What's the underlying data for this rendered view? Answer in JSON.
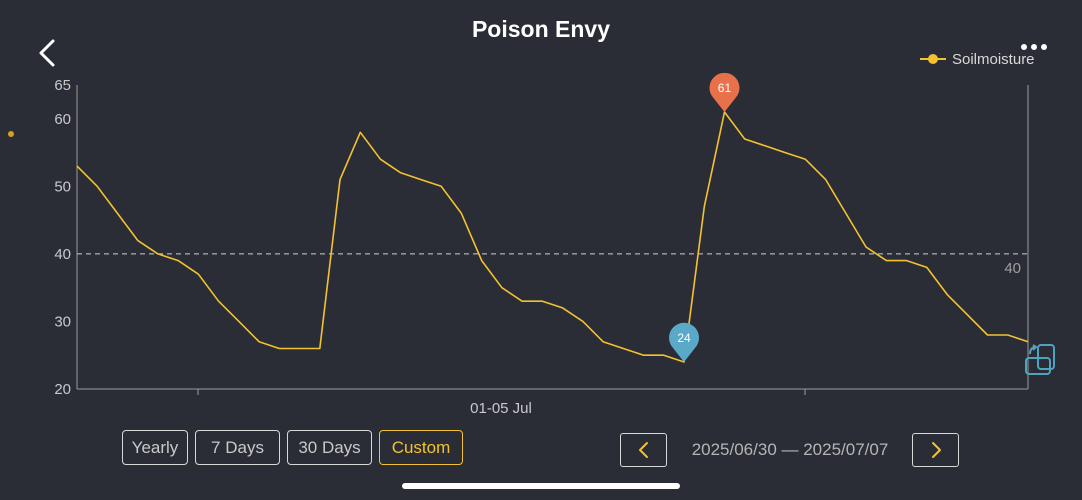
{
  "header": {
    "title": "Poison Envy"
  },
  "icons": {
    "back": "chevron-left-icon",
    "more": "more-dots-icon",
    "rotate": "rotate-screen-icon"
  },
  "colors": {
    "line": "#f2c230",
    "max_marker": "#e8704a",
    "min_marker": "#5aa9c9",
    "axis": "#9a9a9a",
    "text": "#c9c9c9",
    "background": "#2b2d36"
  },
  "chart_data": {
    "type": "line",
    "title": "Poison Envy",
    "series": [
      {
        "name": "Soilmoisture",
        "values": [
          53,
          50,
          46,
          42,
          40,
          39,
          37,
          33,
          30,
          27,
          26,
          26,
          26,
          51,
          58,
          54,
          52,
          51,
          50,
          46,
          39,
          35,
          33,
          33,
          32,
          30,
          27,
          26,
          25,
          25,
          24,
          47,
          61,
          57,
          56,
          55,
          54,
          51,
          46,
          41,
          39,
          39,
          38,
          34,
          31,
          28,
          28,
          27
        ]
      }
    ],
    "ylim": [
      20,
      65
    ],
    "yticks": [
      20,
      30,
      40,
      50,
      60,
      65
    ],
    "xtick_label": "01-05 Jul",
    "threshold": {
      "value": 40,
      "label": "40"
    },
    "max_marker": {
      "value": 61,
      "label": "61"
    },
    "min_marker": {
      "value": 24,
      "label": "24"
    },
    "legend_position": "top-right",
    "grid": false
  },
  "controls": {
    "ranges": [
      {
        "label": "Yearly",
        "active": false
      },
      {
        "label": "7 Days",
        "active": false
      },
      {
        "label": "30 Days",
        "active": false
      },
      {
        "label": "Custom",
        "active": true
      }
    ],
    "date_range": "2025/06/30 — 2025/07/07",
    "prev": "chevron-left-icon",
    "next": "chevron-right-icon"
  }
}
